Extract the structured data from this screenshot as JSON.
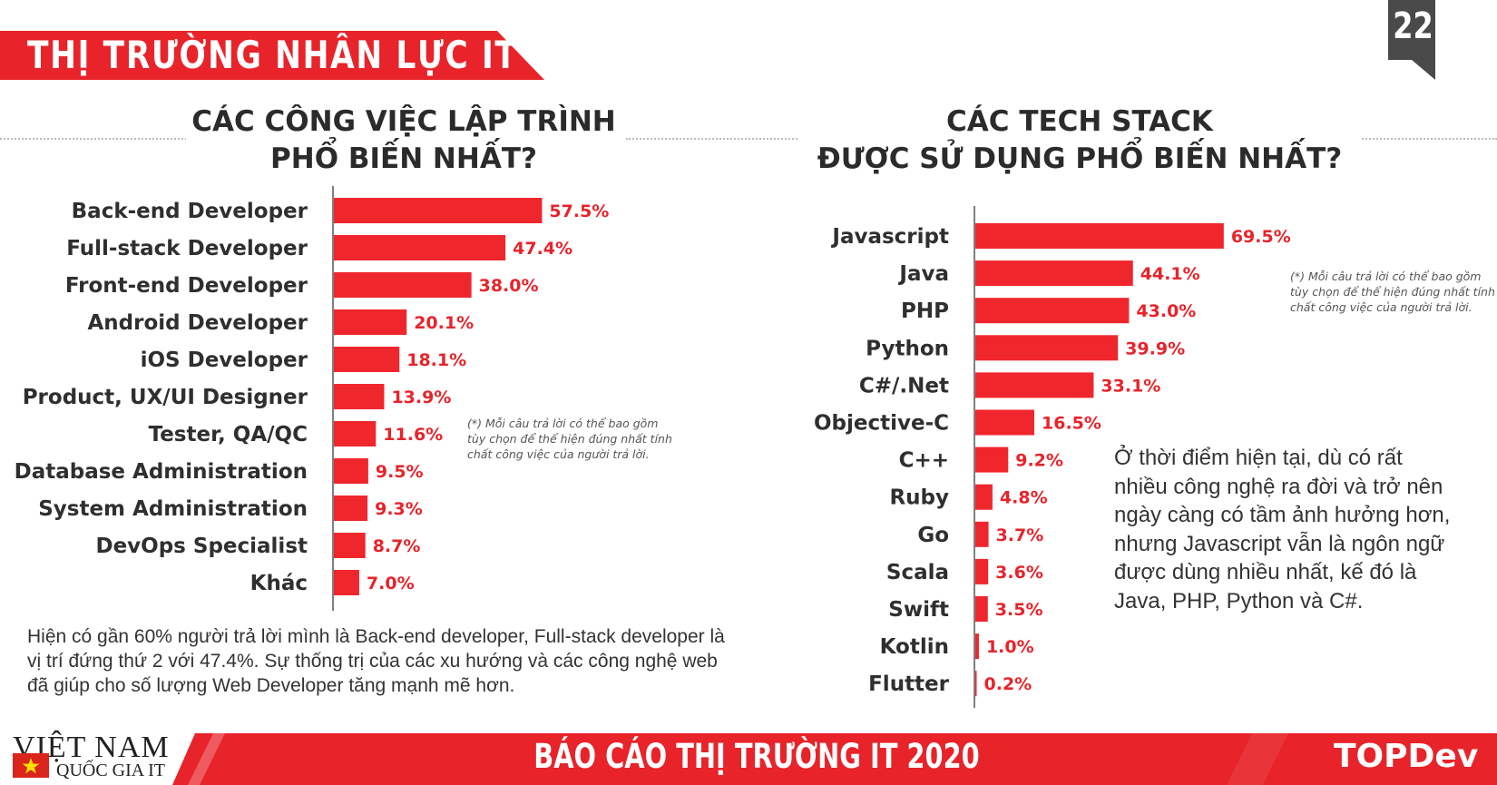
{
  "header": {
    "title": "THỊ TRƯỜNG NHÂN LỰC IT",
    "page_number": "22"
  },
  "left": {
    "title_line1": "CÁC CÔNG VIỆC LẬP TRÌNH",
    "title_line2": "PHỔ BIẾN NHẤT?",
    "note": [
      "(*) Mỗi câu trả lời có thể bao gồm",
      "tùy chọn để thể hiện đúng nhất tính",
      "chất công việc của người trả lời."
    ],
    "paragraph": [
      "Hiện có gần 60% người trả lời mình là Back-end developer, Full-stack developer là",
      "vị trí đứng thứ 2 với 47.4%. Sự thống trị của các xu hướng và các công nghệ web",
      "đã giúp cho số lượng Web Developer tăng mạnh mẽ hơn."
    ]
  },
  "right": {
    "title_line1": "CÁC TECH STACK",
    "title_line2": "ĐƯỢC SỬ DỤNG PHỔ BIẾN NHẤT?",
    "note": [
      "(*) Mỗi câu trả lời có thể bao gồm",
      "tùy chọn để thể hiện đúng nhất tính",
      "chất công việc của người trả lời."
    ],
    "paragraph": [
      "Ở thời điểm hiện tại, dù có rất",
      "nhiều công nghệ ra đời và trở nên",
      "ngày càng có tầm ảnh hưởng hơn,",
      "nhưng Javascript vẫn là ngôn ngữ",
      "được dùng nhiều nhất, kế đó là",
      "Java, PHP, Python và C#."
    ]
  },
  "chart_data": [
    {
      "type": "bar",
      "orientation": "horizontal",
      "title": "CÁC CÔNG VIỆC LẬP TRÌNH PHỔ BIẾN NHẤT?",
      "categories": [
        "Back-end Developer",
        "Full-stack Developer",
        "Front-end Developer",
        "Android Developer",
        "iOS Developer",
        "Product, UX/UI Designer",
        "Tester, QA/QC",
        "Database Administration",
        "System Administration",
        "DevOps Specialist",
        "Khác"
      ],
      "values": [
        57.5,
        47.4,
        38.0,
        20.1,
        18.1,
        13.9,
        11.6,
        9.5,
        9.3,
        8.7,
        7.0
      ],
      "labels": [
        "57.5%",
        "47.4%",
        "38.0%",
        "20.1%",
        "18.1%",
        "13.9%",
        "11.6%",
        "9.5%",
        "9.3%",
        "8.7%",
        "7.0%"
      ],
      "unit": "%",
      "xlim": [
        0,
        100
      ],
      "grid": false,
      "color": "#f0262d"
    },
    {
      "type": "bar",
      "orientation": "horizontal",
      "title": "CÁC TECH STACK ĐƯỢC SỬ DỤNG PHỔ BIẾN NHẤT?",
      "categories": [
        "Javascript",
        "Java",
        "PHP",
        "Python",
        "C#/.Net",
        "Objective-C",
        "C++",
        "Ruby",
        "Go",
        "Scala",
        "Swift",
        "Kotlin",
        "Flutter"
      ],
      "values": [
        69.5,
        44.1,
        43.0,
        39.9,
        33.1,
        16.5,
        9.2,
        4.8,
        3.7,
        3.6,
        3.5,
        1.0,
        0.2
      ],
      "labels": [
        "69.5%",
        "44.1%",
        "43.0%",
        "39.9%",
        "33.1%",
        "16.5%",
        "9.2%",
        "4.8%",
        "3.7%",
        "3.6%",
        "3.5%",
        "1.0%",
        "0.2%"
      ],
      "unit": "%",
      "xlim": [
        0,
        100
      ],
      "grid": false,
      "color": "#f0262d"
    }
  ],
  "footer": {
    "brand_line1": "VIỆT NAM",
    "brand_line2": "QUỐC GIA IT",
    "title": "BÁO CÁO THỊ TRƯỜNG IT 2020",
    "logo": "TOPDev"
  },
  "colors": {
    "accent": "#e8232a",
    "bar": "#f0262d",
    "text": "#2f2f2f"
  }
}
